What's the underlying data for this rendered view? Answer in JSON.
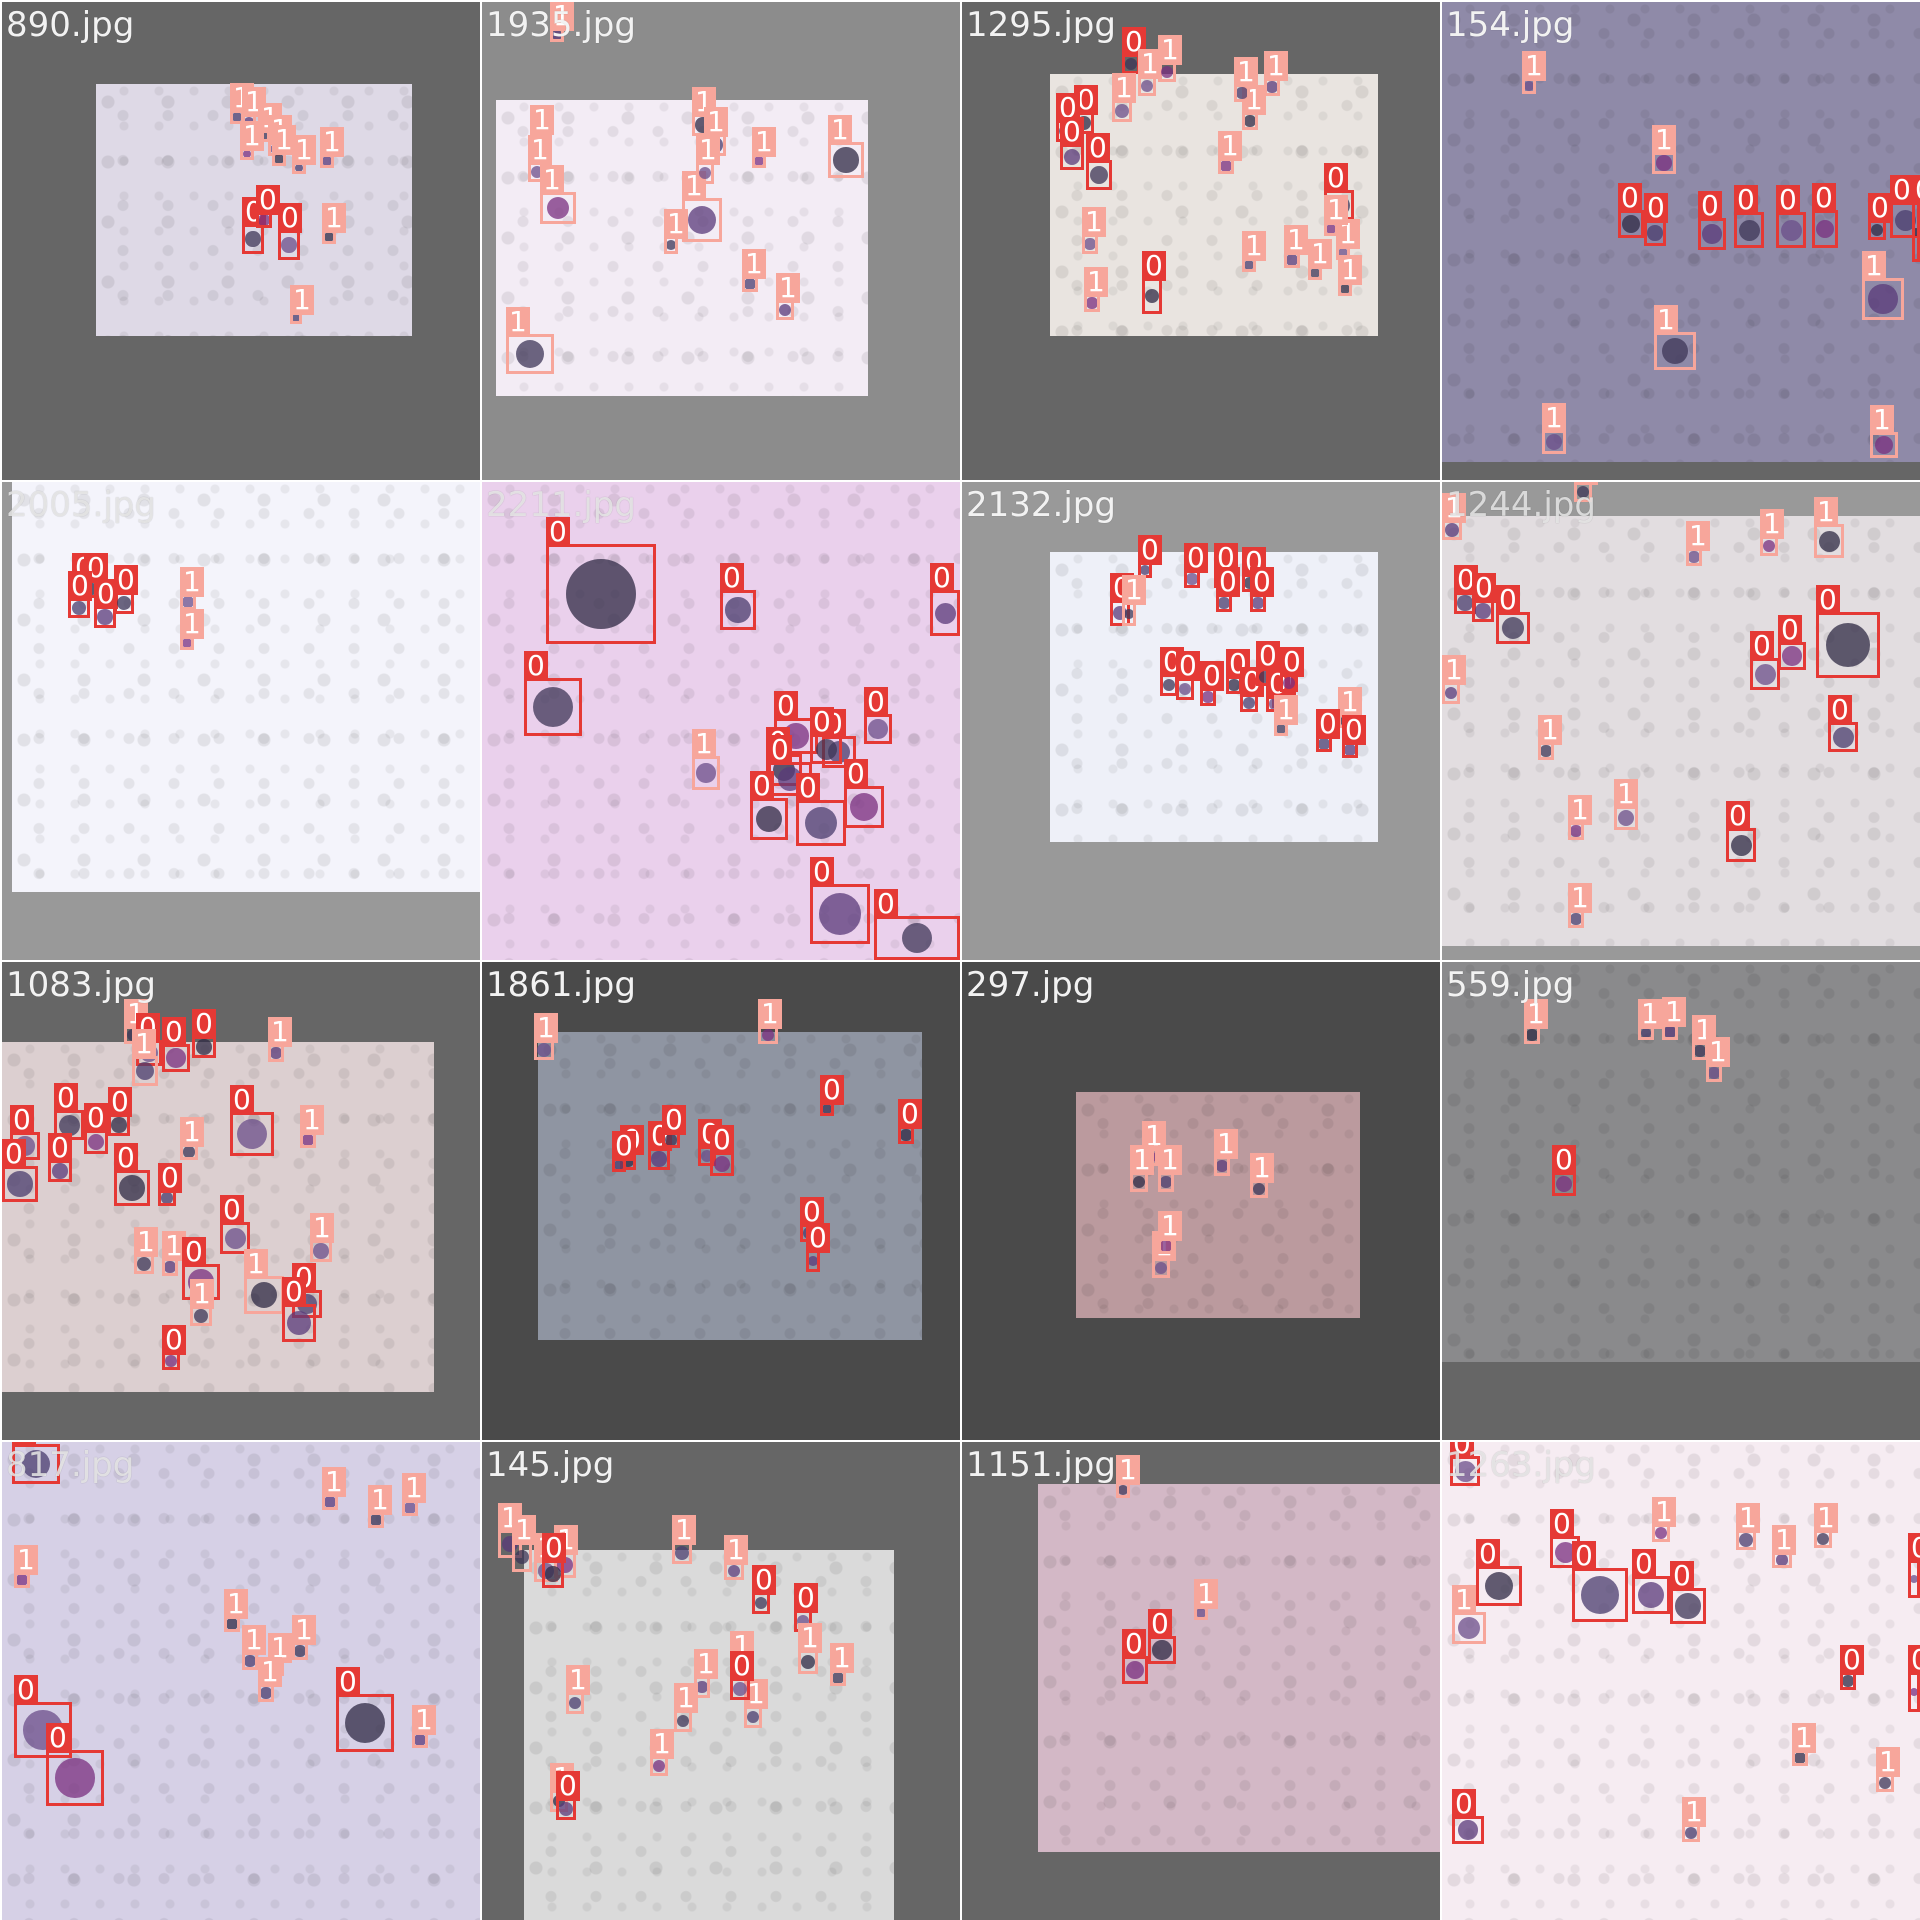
{
  "mosaic": {
    "class_colors": {
      "0": "#e53935",
      "1": "#f7a69b"
    },
    "tiles": [
      {
        "filename": "890.jpg",
        "bg": "#666666",
        "photo": {
          "color": "#ded9e6"
        },
        "boxes": [
          {
            "cls": "1"
          },
          {
            "cls": "1"
          },
          {
            "cls": "1"
          },
          {
            "cls": "1"
          },
          {
            "cls": "1"
          },
          {
            "cls": "1"
          },
          {
            "cls": "1"
          },
          {
            "cls": "1"
          },
          {
            "cls": "0"
          },
          {
            "cls": "0"
          },
          {
            "cls": "0"
          },
          {
            "cls": "1"
          },
          {
            "cls": "1"
          }
        ]
      },
      {
        "filename": "1935.jpg",
        "bg": "#8c8c8c",
        "photo": {
          "color": "#f3ecf5"
        },
        "boxes": [
          {
            "cls": "1"
          },
          {
            "cls": "1"
          },
          {
            "cls": "1"
          },
          {
            "cls": "1"
          },
          {
            "cls": "1"
          },
          {
            "cls": "1"
          },
          {
            "cls": "1"
          },
          {
            "cls": "1"
          },
          {
            "cls": "1"
          },
          {
            "cls": "1"
          },
          {
            "cls": "1"
          },
          {
            "cls": "1"
          },
          {
            "cls": "1"
          },
          {
            "cls": "1"
          }
        ]
      },
      {
        "filename": "1295.jpg",
        "bg": "#666666",
        "photo": {
          "color": "#e9e4e0"
        },
        "boxes": [
          {
            "cls": "0"
          },
          {
            "cls": "1"
          },
          {
            "cls": "1"
          },
          {
            "cls": "0"
          },
          {
            "cls": "0"
          },
          {
            "cls": "0"
          },
          {
            "cls": "0"
          },
          {
            "cls": "1"
          },
          {
            "cls": "1"
          },
          {
            "cls": "1"
          },
          {
            "cls": "1"
          },
          {
            "cls": "1"
          },
          {
            "cls": "0"
          },
          {
            "cls": "1"
          },
          {
            "cls": "1"
          },
          {
            "cls": "0"
          },
          {
            "cls": "1"
          },
          {
            "cls": "1"
          },
          {
            "cls": "1"
          },
          {
            "cls": "1"
          },
          {
            "cls": "1"
          },
          {
            "cls": "1"
          }
        ]
      },
      {
        "filename": "154.jpg",
        "bg": "#666666",
        "photo": {
          "color": "#8f8aa8"
        },
        "boxes": [
          {
            "cls": "1"
          },
          {
            "cls": "1"
          },
          {
            "cls": "0"
          },
          {
            "cls": "0"
          },
          {
            "cls": "0"
          },
          {
            "cls": "0"
          },
          {
            "cls": "0"
          },
          {
            "cls": "0"
          },
          {
            "cls": "0"
          },
          {
            "cls": "0"
          },
          {
            "cls": "1"
          },
          {
            "cls": "1"
          },
          {
            "cls": "1"
          },
          {
            "cls": "1"
          },
          {
            "cls": "0"
          }
        ]
      },
      {
        "filename": "2005.jpg",
        "bg": "#999999",
        "photo": {
          "color": "#f4f4fb"
        },
        "dim": true,
        "boxes": [
          {
            "cls": "0"
          },
          {
            "cls": "0"
          },
          {
            "cls": "0"
          },
          {
            "cls": "0"
          },
          {
            "cls": "0"
          },
          {
            "cls": "1"
          },
          {
            "cls": "1"
          }
        ]
      },
      {
        "filename": "2211.jpg",
        "bg": "#e8c8e6",
        "photo": {
          "color": "#ead0ec"
        },
        "dim": true,
        "boxes": [
          {
            "cls": "0"
          },
          {
            "cls": "0"
          },
          {
            "cls": "0"
          },
          {
            "cls": "0"
          },
          {
            "cls": "1"
          },
          {
            "cls": "0"
          },
          {
            "cls": "0"
          },
          {
            "cls": "0"
          },
          {
            "cls": "0"
          },
          {
            "cls": "0"
          },
          {
            "cls": "0"
          },
          {
            "cls": "0"
          },
          {
            "cls": "0"
          },
          {
            "cls": "0"
          },
          {
            "cls": "0"
          },
          {
            "cls": "0"
          }
        ]
      },
      {
        "filename": "2132.jpg",
        "bg": "#999999",
        "photo": {
          "color": "#eef0f8"
        },
        "boxes": [
          {
            "cls": "0"
          },
          {
            "cls": "0"
          },
          {
            "cls": "1"
          },
          {
            "cls": "0"
          },
          {
            "cls": "0"
          },
          {
            "cls": "0"
          },
          {
            "cls": "0"
          },
          {
            "cls": "0"
          },
          {
            "cls": "0"
          },
          {
            "cls": "0"
          },
          {
            "cls": "0"
          },
          {
            "cls": "0"
          },
          {
            "cls": "0"
          },
          {
            "cls": "0"
          },
          {
            "cls": "0"
          },
          {
            "cls": "0"
          },
          {
            "cls": "0"
          },
          {
            "cls": "1"
          },
          {
            "cls": "0"
          },
          {
            "cls": "0"
          },
          {
            "cls": "1"
          }
        ]
      },
      {
        "filename": "1244.jpg",
        "bg": "#999999",
        "photo": {
          "color": "#e2dde0"
        },
        "dim": true,
        "boxes": [
          {
            "cls": "1"
          },
          {
            "cls": "1"
          },
          {
            "cls": "1"
          },
          {
            "cls": "1"
          },
          {
            "cls": "1"
          },
          {
            "cls": "0"
          },
          {
            "cls": "0"
          },
          {
            "cls": "0"
          },
          {
            "cls": "0"
          },
          {
            "cls": "0"
          },
          {
            "cls": "0"
          },
          {
            "cls": "0"
          },
          {
            "cls": "1"
          },
          {
            "cls": "1"
          },
          {
            "cls": "1"
          },
          {
            "cls": "1"
          },
          {
            "cls": "0"
          },
          {
            "cls": "1"
          }
        ]
      },
      {
        "filename": "1083.jpg",
        "bg": "#666666",
        "photo": {
          "color": "#dccfd0"
        },
        "boxes": [
          {
            "cls": "1"
          },
          {
            "cls": "0"
          },
          {
            "cls": "0"
          },
          {
            "cls": "0"
          },
          {
            "cls": "1"
          },
          {
            "cls": "1"
          },
          {
            "cls": "0"
          },
          {
            "cls": "0"
          },
          {
            "cls": "0"
          },
          {
            "cls": "0"
          },
          {
            "cls": "0"
          },
          {
            "cls": "0"
          },
          {
            "cls": "1"
          },
          {
            "cls": "0"
          },
          {
            "cls": "1"
          },
          {
            "cls": "0"
          },
          {
            "cls": "0"
          },
          {
            "cls": "1"
          },
          {
            "cls": "1"
          },
          {
            "cls": "0"
          },
          {
            "cls": "0"
          },
          {
            "cls": "1"
          },
          {
            "cls": "0"
          },
          {
            "cls": "0"
          },
          {
            "cls": "1"
          },
          {
            "cls": "1"
          },
          {
            "cls": "0"
          }
        ]
      },
      {
        "filename": "1861.jpg",
        "bg": "#4a4a4a",
        "photo": {
          "color": "#8f95a2"
        },
        "boxes": [
          {
            "cls": "1"
          },
          {
            "cls": "1"
          },
          {
            "cls": "0"
          },
          {
            "cls": "0"
          },
          {
            "cls": "0"
          },
          {
            "cls": "0"
          },
          {
            "cls": "0"
          },
          {
            "cls": "0"
          },
          {
            "cls": "0"
          },
          {
            "cls": "0"
          },
          {
            "cls": "0"
          },
          {
            "cls": "0"
          }
        ]
      },
      {
        "filename": "297.jpg",
        "bg": "#4a4a4a",
        "photo": {
          "color": "#bb9a9e"
        },
        "boxes": [
          {
            "cls": "1"
          },
          {
            "cls": "1"
          },
          {
            "cls": "1"
          },
          {
            "cls": "1"
          },
          {
            "cls": "1"
          },
          {
            "cls": "1"
          },
          {
            "cls": "1"
          }
        ]
      },
      {
        "filename": "559.jpg",
        "bg": "#666666",
        "photo": {
          "color": "#8a8a8c"
        },
        "boxes": [
          {
            "cls": "1"
          },
          {
            "cls": "1"
          },
          {
            "cls": "1"
          },
          {
            "cls": "1"
          },
          {
            "cls": "1"
          },
          {
            "cls": "0"
          }
        ]
      },
      {
        "filename": "817.jpg",
        "bg": "#d9d2e8",
        "photo": {
          "color": "#d6d0e6"
        },
        "dim": true,
        "boxes": [
          {
            "cls": "0"
          },
          {
            "cls": "1"
          },
          {
            "cls": "1"
          },
          {
            "cls": "1"
          },
          {
            "cls": "1"
          },
          {
            "cls": "1"
          },
          {
            "cls": "1"
          },
          {
            "cls": "1"
          },
          {
            "cls": "1"
          },
          {
            "cls": "0"
          },
          {
            "cls": "0"
          },
          {
            "cls": "0"
          },
          {
            "cls": "1"
          },
          {
            "cls": "1"
          }
        ]
      },
      {
        "filename": "145.jpg",
        "bg": "#666666",
        "photo": {
          "color": "#dadada"
        },
        "boxes": [
          {
            "cls": "1"
          },
          {
            "cls": "1"
          },
          {
            "cls": "1"
          },
          {
            "cls": "1"
          },
          {
            "cls": "0"
          },
          {
            "cls": "1"
          },
          {
            "cls": "1"
          },
          {
            "cls": "0"
          },
          {
            "cls": "0"
          },
          {
            "cls": "1"
          },
          {
            "cls": "1"
          },
          {
            "cls": "1"
          },
          {
            "cls": "1"
          },
          {
            "cls": "1"
          },
          {
            "cls": "0"
          },
          {
            "cls": "1"
          },
          {
            "cls": "1"
          },
          {
            "cls": "1"
          },
          {
            "cls": "0"
          },
          {
            "cls": "1"
          }
        ]
      },
      {
        "filename": "1151.jpg",
        "bg": "#666666",
        "photo": {
          "color": "#d3b8c6"
        },
        "boxes": [
          {
            "cls": "1"
          },
          {
            "cls": "1"
          },
          {
            "cls": "0"
          },
          {
            "cls": "0"
          }
        ]
      },
      {
        "filename": "1263.jpg",
        "bg": "#f3eaf0",
        "photo": {
          "color": "#f6ecf2"
        },
        "dim": true,
        "boxes": [
          {
            "cls": "0"
          },
          {
            "cls": "0"
          },
          {
            "cls": "0"
          },
          {
            "cls": "0"
          },
          {
            "cls": "0"
          },
          {
            "cls": "0"
          },
          {
            "cls": "1"
          },
          {
            "cls": "1"
          },
          {
            "cls": "0"
          },
          {
            "cls": "1"
          },
          {
            "cls": "1"
          },
          {
            "cls": "1"
          },
          {
            "cls": "0"
          },
          {
            "cls": "0"
          },
          {
            "cls": "1"
          },
          {
            "cls": "1"
          },
          {
            "cls": "0"
          },
          {
            "cls": "1"
          }
        ]
      }
    ]
  }
}
